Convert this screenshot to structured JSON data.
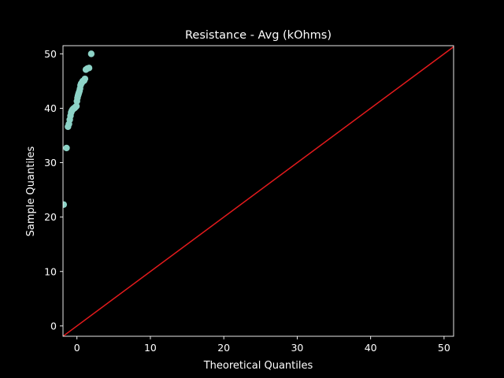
{
  "chart_data": {
    "type": "scatter",
    "title": "Resistance - Avg (kOhms)",
    "xlabel": "Theoretical Quantiles",
    "ylabel": "Sample Quantiles",
    "xlim": [
      -1.9,
      51.3
    ],
    "ylim": [
      -1.9,
      51.5
    ],
    "xticks": [
      0,
      10,
      20,
      30,
      40,
      50
    ],
    "yticks": [
      0,
      10,
      20,
      30,
      40,
      50
    ],
    "grid": false,
    "legend": "none",
    "colors": {
      "background": "#000000",
      "points": "#8dd3c7",
      "reference_line": "#e31a1c",
      "axes": "#ffffff"
    },
    "series": [
      {
        "values_xy": [
          [
            -1.81,
            22.3
          ],
          [
            -1.42,
            32.7
          ],
          [
            -1.22,
            36.6
          ],
          [
            -1.09,
            37.1
          ],
          [
            -0.98,
            37.9
          ],
          [
            -0.88,
            38.6
          ],
          [
            -0.79,
            39.2
          ],
          [
            -0.71,
            39.5
          ],
          [
            -0.63,
            39.7
          ],
          [
            -0.56,
            39.8
          ],
          [
            -0.49,
            39.9
          ],
          [
            -0.42,
            40.0
          ],
          [
            -0.35,
            40.0
          ],
          [
            -0.28,
            40.1
          ],
          [
            -0.21,
            40.2
          ],
          [
            -0.14,
            40.3
          ],
          [
            -0.07,
            40.4
          ],
          [
            0.0,
            41.3
          ],
          [
            0.07,
            41.9
          ],
          [
            0.14,
            42.3
          ],
          [
            0.21,
            42.6
          ],
          [
            0.28,
            42.9
          ],
          [
            0.35,
            43.2
          ],
          [
            0.42,
            43.6
          ],
          [
            0.49,
            44.2
          ],
          [
            0.56,
            44.5
          ],
          [
            0.63,
            44.6
          ],
          [
            0.71,
            44.8
          ],
          [
            0.79,
            45.0
          ],
          [
            0.88,
            45.0
          ],
          [
            0.98,
            45.1
          ],
          [
            1.09,
            45.4
          ],
          [
            1.22,
            47.1
          ],
          [
            1.42,
            47.3
          ],
          [
            1.65,
            47.4
          ],
          [
            1.95,
            50.0
          ]
        ]
      }
    ],
    "reference_line": {
      "from": [
        -1.9,
        -1.9
      ],
      "to": [
        51.3,
        51.3
      ]
    }
  }
}
